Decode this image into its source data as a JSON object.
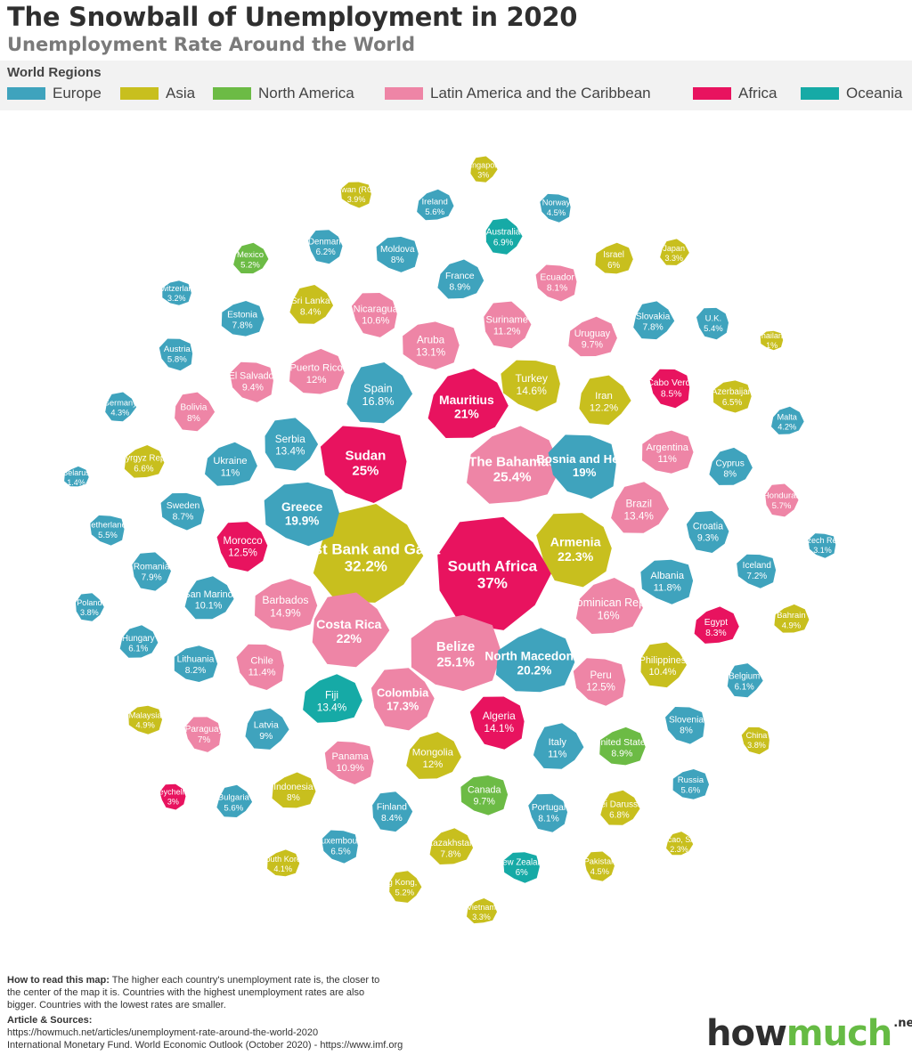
{
  "header": {
    "title": "The Snowball of Unemployment in 2020",
    "subtitle": "Unemployment Rate Around the World"
  },
  "legend": {
    "title": "World Regions",
    "items": [
      {
        "label": "Europe",
        "color": "#3fa3bd"
      },
      {
        "label": "Asia",
        "color": "#c8bf1e"
      },
      {
        "label": "North America",
        "color": "#6cbb45"
      },
      {
        "label": "Latin America and the Caribbean",
        "color": "#ee85a6"
      },
      {
        "label": "Africa",
        "color": "#e8135f"
      },
      {
        "label": "Oceania",
        "color": "#16aaa6"
      }
    ]
  },
  "chart_data": {
    "type": "bubble-map",
    "unit": "%",
    "countries": [
      {
        "name": "South Africa",
        "value": 37,
        "region": "Africa"
      },
      {
        "name": "West Bank and Gaza",
        "value": 32.2,
        "region": "Asia"
      },
      {
        "name": "The Bahamas",
        "value": 25.4,
        "region": "Latin America and the Caribbean"
      },
      {
        "name": "Belize",
        "value": 25.1,
        "region": "Latin America and the Caribbean"
      },
      {
        "name": "Sudan",
        "value": 25,
        "region": "Africa"
      },
      {
        "name": "Armenia",
        "value": 22.3,
        "region": "Asia"
      },
      {
        "name": "Costa Rica",
        "value": 22,
        "region": "Latin America and the Caribbean"
      },
      {
        "name": "Mauritius",
        "value": 21,
        "region": "Africa"
      },
      {
        "name": "North Macedonia",
        "value": 20.2,
        "region": "Europe"
      },
      {
        "name": "Greece",
        "value": 19.9,
        "region": "Europe"
      },
      {
        "name": "Bosnia and Herz.",
        "value": 19,
        "region": "Europe"
      },
      {
        "name": "Colombia",
        "value": 17.3,
        "region": "Latin America and the Caribbean"
      },
      {
        "name": "Spain",
        "value": 16.8,
        "region": "Europe"
      },
      {
        "name": "Dominican Rep.",
        "value": 16,
        "region": "Latin America and the Caribbean"
      },
      {
        "name": "Barbados",
        "value": 14.9,
        "region": "Latin America and the Caribbean"
      },
      {
        "name": "Turkey",
        "value": 14.6,
        "region": "Asia"
      },
      {
        "name": "Algeria",
        "value": 14.1,
        "region": "Africa"
      },
      {
        "name": "Serbia",
        "value": 13.4,
        "region": "Europe"
      },
      {
        "name": "Brazil",
        "value": 13.4,
        "region": "Latin America and the Caribbean"
      },
      {
        "name": "Fiji",
        "value": 13.4,
        "region": "Oceania"
      },
      {
        "name": "Aruba",
        "value": 13.1,
        "region": "Latin America and the Caribbean"
      },
      {
        "name": "Peru",
        "value": 12.5,
        "region": "Latin America and the Caribbean"
      },
      {
        "name": "Morocco",
        "value": 12.5,
        "region": "Africa"
      },
      {
        "name": "Iran",
        "value": 12.2,
        "region": "Asia"
      },
      {
        "name": "Mongolia",
        "value": 12,
        "region": "Asia"
      },
      {
        "name": "Puerto Rico",
        "value": 12,
        "region": "Latin America and the Caribbean"
      },
      {
        "name": "Albania",
        "value": 11.8,
        "region": "Europe"
      },
      {
        "name": "Chile",
        "value": 11.4,
        "region": "Latin America and the Caribbean"
      },
      {
        "name": "Suriname",
        "value": 11.2,
        "region": "Latin America and the Caribbean"
      },
      {
        "name": "Italy",
        "value": 11,
        "region": "Europe"
      },
      {
        "name": "Ukraine",
        "value": 11,
        "region": "Europe"
      },
      {
        "name": "Argentina",
        "value": 11,
        "region": "Latin America and the Caribbean"
      },
      {
        "name": "Panama",
        "value": 10.9,
        "region": "Latin America and the Caribbean"
      },
      {
        "name": "Nicaragua",
        "value": 10.6,
        "region": "Latin America and the Caribbean"
      },
      {
        "name": "Philippines",
        "value": 10.4,
        "region": "Asia"
      },
      {
        "name": "San Marino",
        "value": 10.1,
        "region": "Europe"
      },
      {
        "name": "Uruguay",
        "value": 9.7,
        "region": "Latin America and the Caribbean"
      },
      {
        "name": "Canada",
        "value": 9.7,
        "region": "North America"
      },
      {
        "name": "El Salvador",
        "value": 9.4,
        "region": "Latin America and the Caribbean"
      },
      {
        "name": "Croatia",
        "value": 9.3,
        "region": "Europe"
      },
      {
        "name": "Latvia",
        "value": 9,
        "region": "Europe"
      },
      {
        "name": "France",
        "value": 8.9,
        "region": "Europe"
      },
      {
        "name": "United States",
        "value": 8.9,
        "region": "North America"
      },
      {
        "name": "Sweden",
        "value": 8.7,
        "region": "Europe"
      },
      {
        "name": "Cabo Verde",
        "value": 8.5,
        "region": "Africa"
      },
      {
        "name": "Finland",
        "value": 8.4,
        "region": "Europe"
      },
      {
        "name": "Sri Lanka",
        "value": 8.4,
        "region": "Asia"
      },
      {
        "name": "Egypt",
        "value": 8.3,
        "region": "Africa"
      },
      {
        "name": "Lithuania",
        "value": 8.2,
        "region": "Europe"
      },
      {
        "name": "Ecuador",
        "value": 8.1,
        "region": "Latin America and the Caribbean"
      },
      {
        "name": "Portugal",
        "value": 8.1,
        "region": "Europe"
      },
      {
        "name": "Bolivia",
        "value": 8,
        "region": "Latin America and the Caribbean"
      },
      {
        "name": "Cyprus",
        "value": 8,
        "region": "Europe"
      },
      {
        "name": "Indonesia",
        "value": 8,
        "region": "Asia"
      },
      {
        "name": "Moldova",
        "value": 8,
        "region": "Europe"
      },
      {
        "name": "Slovenia",
        "value": 8,
        "region": "Europe"
      },
      {
        "name": "Romania",
        "value": 7.9,
        "region": "Europe"
      },
      {
        "name": "Slovakia",
        "value": 7.8,
        "region": "Europe"
      },
      {
        "name": "Kazakhstan",
        "value": 7.8,
        "region": "Asia"
      },
      {
        "name": "Estonia",
        "value": 7.8,
        "region": "Europe"
      },
      {
        "name": "Iceland",
        "value": 7.2,
        "region": "Europe"
      },
      {
        "name": "Paraguay",
        "value": 7,
        "region": "Latin America and the Caribbean"
      },
      {
        "name": "Australia",
        "value": 6.9,
        "region": "Oceania"
      },
      {
        "name": "Brunei Darussalam",
        "value": 6.8,
        "region": "Asia"
      },
      {
        "name": "Kyrgyz Rep.",
        "value": 6.6,
        "region": "Asia"
      },
      {
        "name": "Azerbaijan",
        "value": 6.5,
        "region": "Asia"
      },
      {
        "name": "Luxembourg",
        "value": 6.5,
        "region": "Europe"
      },
      {
        "name": "Denmark",
        "value": 6.2,
        "region": "Europe"
      },
      {
        "name": "Belgium",
        "value": 6.1,
        "region": "Europe"
      },
      {
        "name": "Hungary",
        "value": 6.1,
        "region": "Europe"
      },
      {
        "name": "Israel",
        "value": 6,
        "region": "Asia"
      },
      {
        "name": "New Zealand",
        "value": 6,
        "region": "Oceania"
      },
      {
        "name": "Austria",
        "value": 5.8,
        "region": "Europe"
      },
      {
        "name": "Honduras",
        "value": 5.7,
        "region": "Latin America and the Caribbean"
      },
      {
        "name": "Bulgaria",
        "value": 5.6,
        "region": "Europe"
      },
      {
        "name": "Ireland",
        "value": 5.6,
        "region": "Europe"
      },
      {
        "name": "Russia",
        "value": 5.6,
        "region": "Europe"
      },
      {
        "name": "Netherlands",
        "value": 5.5,
        "region": "Europe"
      },
      {
        "name": "U.K.",
        "value": 5.4,
        "region": "Europe"
      },
      {
        "name": "Hong Kong, SAR",
        "value": 5.2,
        "region": "Asia"
      },
      {
        "name": "Mexico",
        "value": 5.2,
        "region": "North America"
      },
      {
        "name": "Bahrain",
        "value": 4.9,
        "region": "Asia"
      },
      {
        "name": "Malaysia",
        "value": 4.9,
        "region": "Asia"
      },
      {
        "name": "Norway",
        "value": 4.5,
        "region": "Europe"
      },
      {
        "name": "Pakistan",
        "value": 4.5,
        "region": "Asia"
      },
      {
        "name": "Germany",
        "value": 4.3,
        "region": "Europe"
      },
      {
        "name": "Malta",
        "value": 4.2,
        "region": "Europe"
      },
      {
        "name": "South Korea",
        "value": 4.1,
        "region": "Asia"
      },
      {
        "name": "Taiwan (ROC)",
        "value": 3.9,
        "region": "Asia"
      },
      {
        "name": "China",
        "value": 3.8,
        "region": "Asia"
      },
      {
        "name": "Poland",
        "value": 3.8,
        "region": "Europe"
      },
      {
        "name": "Japan",
        "value": 3.3,
        "region": "Asia"
      },
      {
        "name": "Vietnam",
        "value": 3.3,
        "region": "Asia"
      },
      {
        "name": "Switzerland",
        "value": 3.2,
        "region": "Europe"
      },
      {
        "name": "Czech Rep.",
        "value": 3.1,
        "region": "Europe"
      },
      {
        "name": "Seychelles",
        "value": 3,
        "region": "Africa"
      },
      {
        "name": "Singapore",
        "value": 3,
        "region": "Asia"
      },
      {
        "name": "Macao, SAR",
        "value": 2.3,
        "region": "Asia"
      },
      {
        "name": "Belarus",
        "value": 1.4,
        "region": "Europe"
      },
      {
        "name": "Thailand",
        "value": 1,
        "region": "Asia"
      }
    ]
  },
  "footer": {
    "how_to_read_title": "How to read this map:",
    "how_to_read_text": "The higher each country's unemployment rate is, the closer to the center of the map it is. Countries with the highest unemployment rates are also bigger. Countries with the lowest rates are smaller.",
    "sources_title": "Article & Sources:",
    "source_1": "https://howmuch.net/articles/unemployment-rate-around-the-world-2020",
    "source_2": "International Monetary Fund. World Economic Outlook (October 2020) - https://www.imf.org"
  },
  "logo": {
    "part1": "how",
    "part2": "much",
    "suffix": ".net"
  }
}
